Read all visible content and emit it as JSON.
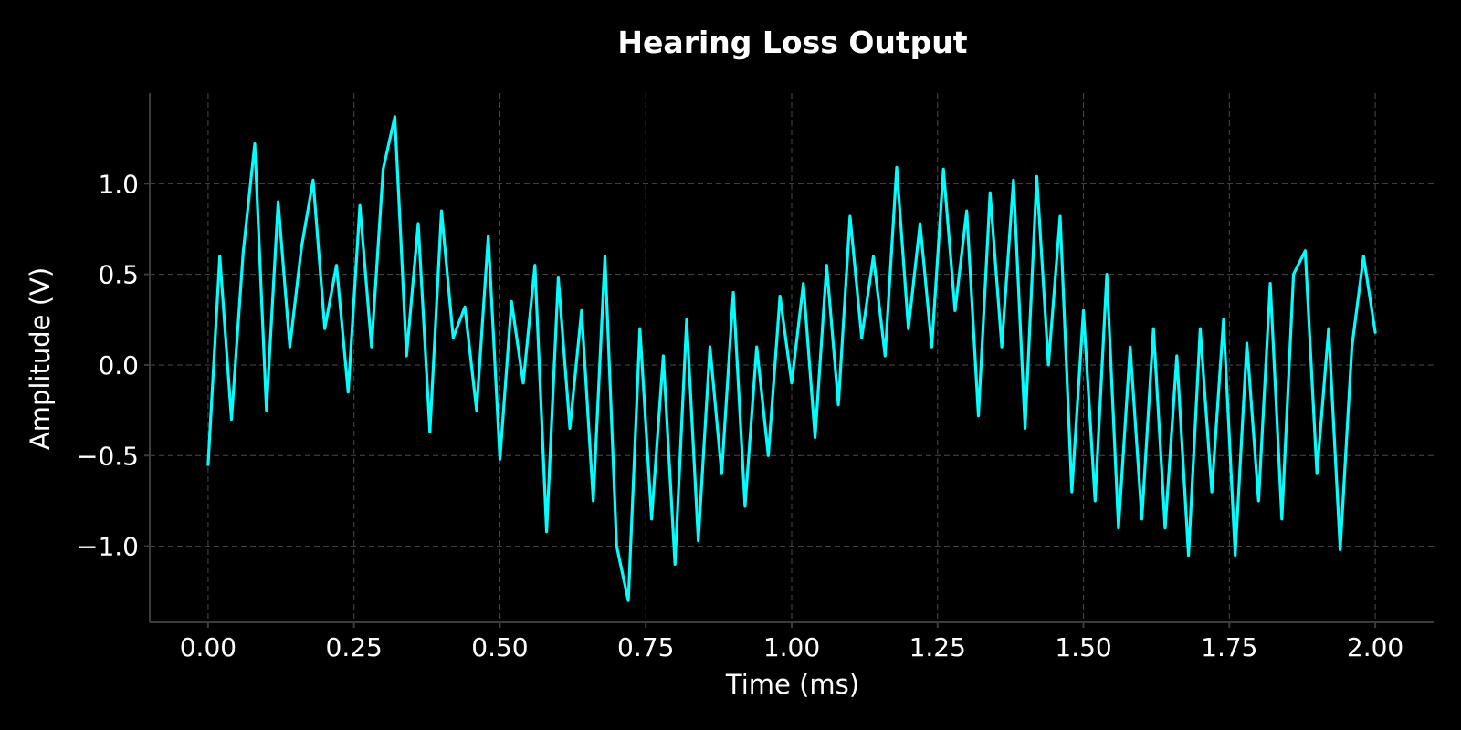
{
  "chart_data": {
    "type": "line",
    "title": "Hearing Loss Output",
    "xlabel": "Time (ms)",
    "ylabel": "Amplitude (V)",
    "xlim": [
      -0.1,
      2.1
    ],
    "ylim": [
      -1.42,
      1.5
    ],
    "x_ticks": [
      0.0,
      0.25,
      0.5,
      0.75,
      1.0,
      1.25,
      1.5,
      1.75,
      2.0
    ],
    "x_tick_labels": [
      "0.00",
      "0.25",
      "0.50",
      "0.75",
      "1.00",
      "1.25",
      "1.50",
      "1.75",
      "2.00"
    ],
    "y_ticks": [
      -1.0,
      -0.5,
      0.0,
      0.5,
      1.0
    ],
    "y_tick_labels": [
      "−1.0",
      "−0.5",
      "0.0",
      "0.5",
      "1.0"
    ],
    "grid": true,
    "legend": "none",
    "colors": {
      "background": "#000000",
      "series": "#00ffff",
      "grid": "#4a4a4a",
      "text": "#ffffff"
    },
    "series": [
      {
        "x": [
          0.0,
          0.02,
          0.04,
          0.06,
          0.08,
          0.1,
          0.12,
          0.14,
          0.16,
          0.18,
          0.2,
          0.22,
          0.24,
          0.26,
          0.28,
          0.3,
          0.32,
          0.34,
          0.36,
          0.38,
          0.4,
          0.42,
          0.44,
          0.46,
          0.48,
          0.5,
          0.52,
          0.54,
          0.56,
          0.58,
          0.6,
          0.62,
          0.64,
          0.66,
          0.68,
          0.7,
          0.72,
          0.74,
          0.76,
          0.78,
          0.8,
          0.82,
          0.84,
          0.86,
          0.88,
          0.9,
          0.92,
          0.94,
          0.96,
          0.98,
          1.0,
          1.02,
          1.04,
          1.06,
          1.08,
          1.1,
          1.12,
          1.14,
          1.16,
          1.18,
          1.2,
          1.22,
          1.24,
          1.26,
          1.28,
          1.3,
          1.32,
          1.34,
          1.36,
          1.38,
          1.4,
          1.42,
          1.44,
          1.46,
          1.48,
          1.5,
          1.52,
          1.54,
          1.56,
          1.58,
          1.6,
          1.62,
          1.64,
          1.66,
          1.68,
          1.7,
          1.72,
          1.74,
          1.76,
          1.78,
          1.8,
          1.82,
          1.84,
          1.86,
          1.88,
          1.9,
          1.92,
          1.94,
          1.96,
          1.98,
          2.0
        ],
        "values": [
          -0.55,
          0.6,
          -0.3,
          0.62,
          1.22,
          -0.25,
          0.9,
          0.1,
          0.65,
          1.02,
          0.2,
          0.55,
          -0.15,
          0.88,
          0.1,
          1.08,
          1.37,
          0.05,
          0.78,
          -0.37,
          0.85,
          0.15,
          0.32,
          -0.25,
          0.71,
          -0.52,
          0.35,
          -0.1,
          0.55,
          -0.92,
          0.48,
          -0.35,
          0.3,
          -0.75,
          0.6,
          -1.0,
          -1.3,
          0.2,
          -0.85,
          0.05,
          -1.1,
          0.25,
          -0.97,
          0.1,
          -0.6,
          0.4,
          -0.78,
          0.1,
          -0.5,
          0.38,
          -0.1,
          0.45,
          -0.4,
          0.55,
          -0.22,
          0.82,
          0.15,
          0.6,
          0.05,
          1.09,
          0.2,
          0.78,
          0.1,
          1.08,
          0.3,
          0.85,
          -0.28,
          0.95,
          0.1,
          1.02,
          -0.35,
          1.04,
          0.0,
          0.82,
          -0.7,
          0.3,
          -0.75,
          0.5,
          -0.9,
          0.1,
          -0.85,
          0.2,
          -0.9,
          0.05,
          -1.05,
          0.2,
          -0.7,
          0.25,
          -1.05,
          0.12,
          -0.75,
          0.45,
          -0.85,
          0.5,
          0.63,
          -0.6,
          0.2,
          -1.02,
          0.1,
          0.6,
          0.18
        ]
      }
    ]
  }
}
